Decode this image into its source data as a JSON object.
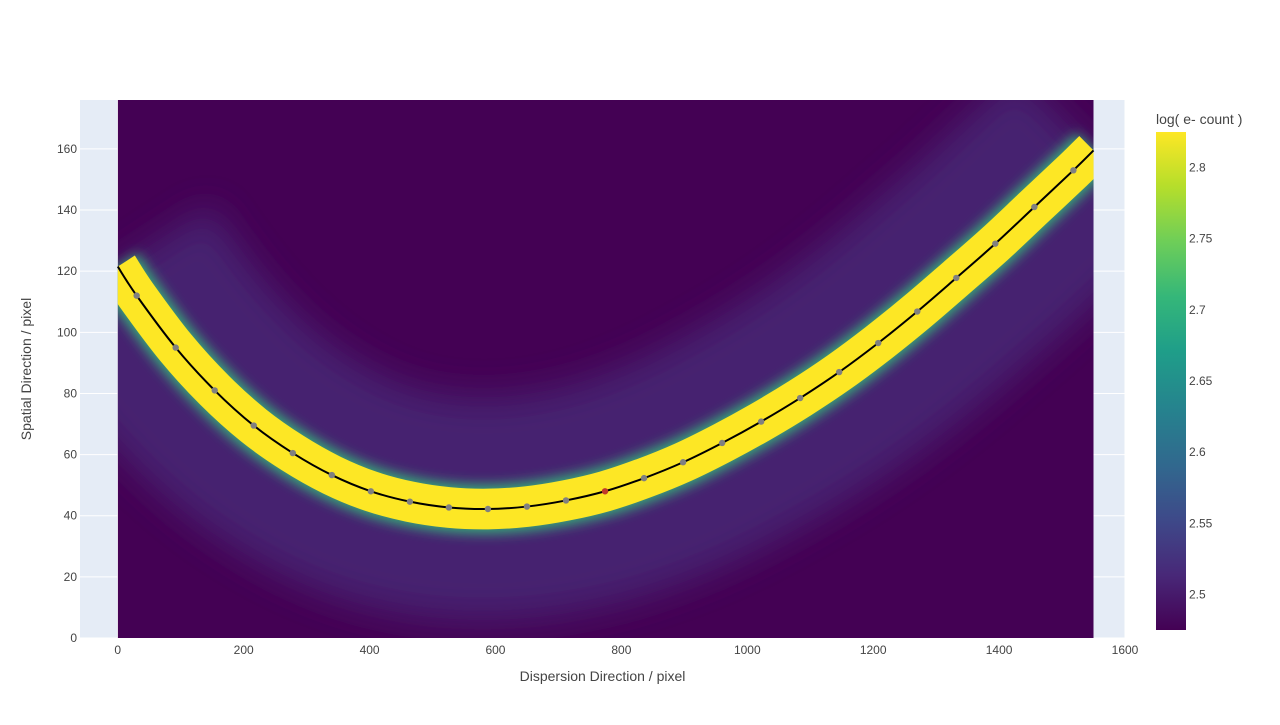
{
  "chart_data": {
    "type": "heatmap",
    "title": "",
    "xlabel": "Dispersion Direction / pixel",
    "ylabel": "Spatial Direction / pixel",
    "xlim": [
      -60,
      1600
    ],
    "ylim": [
      0,
      176
    ],
    "image_extent": {
      "x": [
        0,
        1550
      ],
      "y": [
        0,
        176
      ]
    },
    "xticks": [
      0,
      200,
      400,
      600,
      800,
      1000,
      1200,
      1400,
      1600
    ],
    "yticks": [
      0,
      20,
      40,
      60,
      80,
      100,
      120,
      140,
      160
    ],
    "grid": true,
    "colorbar": {
      "title": "log( e- count )",
      "colorscale": "Viridis",
      "range": [
        2.475,
        2.825
      ],
      "ticks": [
        2.5,
        2.55,
        2.6,
        2.65,
        2.7,
        2.75,
        2.8
      ]
    },
    "trace": {
      "type": "line",
      "color": "#000000",
      "x": [
        0,
        30,
        92,
        154,
        216,
        278,
        340,
        402,
        464,
        526,
        588,
        650,
        712,
        774,
        836,
        898,
        960,
        1022,
        1084,
        1146,
        1208,
        1270,
        1332,
        1394,
        1456,
        1518,
        1550
      ],
      "y": [
        121.5,
        112,
        95,
        81,
        69.5,
        60.5,
        53.3,
        48,
        44.6,
        42.7,
        42.2,
        43.0,
        45.0,
        48.0,
        52.3,
        57.5,
        63.8,
        70.8,
        78.5,
        87.0,
        96.5,
        106.8,
        117.8,
        129.0,
        141.0,
        153.0,
        159.5
      ]
    },
    "points": {
      "type": "scatter",
      "x": [
        30,
        92,
        154,
        216,
        278,
        340,
        402,
        464,
        526,
        588,
        650,
        712,
        774,
        836,
        898,
        960,
        1022,
        1084,
        1146,
        1208,
        1270,
        1332,
        1394,
        1456,
        1518
      ],
      "y": [
        112,
        95,
        81,
        69.5,
        60.5,
        53.3,
        48,
        44.6,
        42.7,
        42.2,
        43.0,
        45.0,
        48.0,
        52.3,
        57.5,
        63.8,
        70.8,
        78.5,
        87.0,
        96.5,
        106.8,
        117.8,
        129.0,
        141.0,
        153.0
      ],
      "colors": [
        "#808080",
        "#808080",
        "#808080",
        "#808080",
        "#808080",
        "#808080",
        "#808080",
        "#808080",
        "#808080",
        "#808080",
        "#808080",
        "#808080",
        "#c0392b",
        "#808080",
        "#808080",
        "#808080",
        "#808080",
        "#808080",
        "#808080",
        "#808080",
        "#808080",
        "#808080",
        "#808080",
        "#808080",
        "#808080"
      ]
    }
  }
}
